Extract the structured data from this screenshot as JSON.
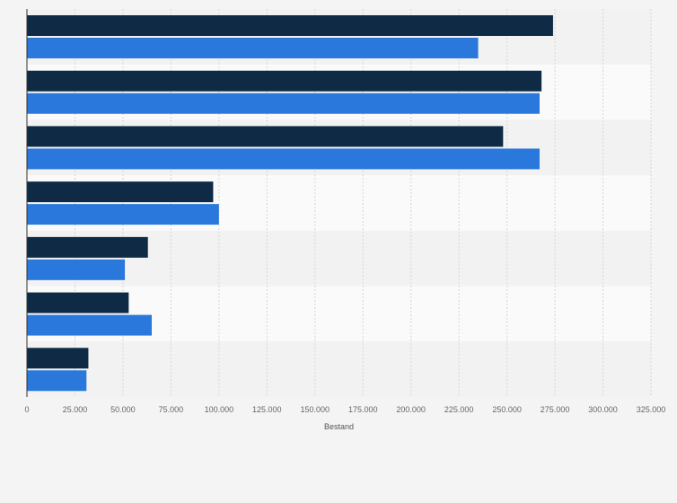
{
  "chart_data": {
    "type": "bar",
    "orientation": "horizontal",
    "title": "",
    "xlabel": "Bestand",
    "ylabel": "",
    "xlim": [
      0,
      325000
    ],
    "x_ticks": [
      0,
      25000,
      50000,
      75000,
      100000,
      125000,
      150000,
      175000,
      200000,
      225000,
      250000,
      275000,
      300000,
      325000
    ],
    "x_tick_labels": [
      "0",
      "25.000",
      "50.000",
      "75.000",
      "100.000",
      "125.000",
      "150.000",
      "175.000",
      "200.000",
      "225.000",
      "250.000",
      "275.000",
      "300.000",
      "325.000"
    ],
    "categories": [
      "",
      "",
      "",
      "",
      "",
      "",
      ""
    ],
    "grid": true,
    "legend": "none",
    "colors": [
      "#0f2a44",
      "#2a78dc"
    ],
    "series": [
      {
        "values": [
          274000,
          268000,
          248000,
          97000,
          63000,
          53000,
          32000
        ]
      },
      {
        "values": [
          235000,
          267000,
          267000,
          100000,
          51000,
          65000,
          31000
        ]
      }
    ]
  }
}
